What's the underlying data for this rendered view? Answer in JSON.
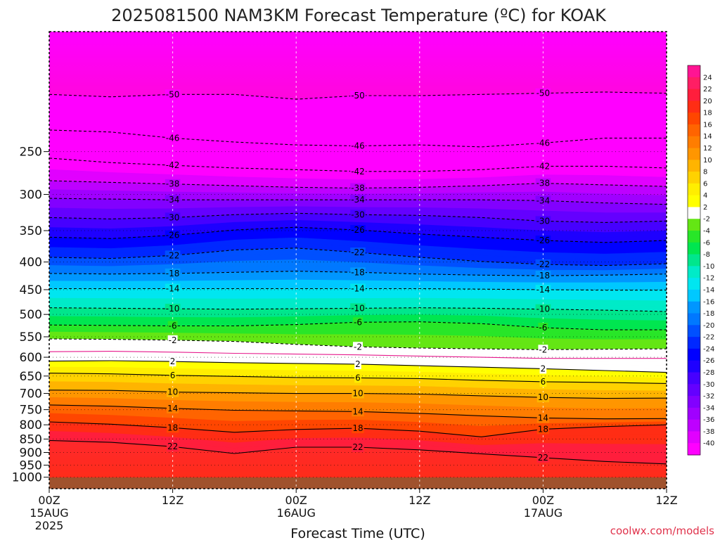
{
  "title": "2025081500 NAM3KM Forecast Temperature (ºC) for KOAK",
  "credit": "coolwx.com/models",
  "chart_data": {
    "type": "heatmap",
    "title": "2025081500 NAM3KM Forecast Temperature (ºC) for KOAK",
    "xlabel": "Forecast Time (UTC)",
    "ylabel": "",
    "x_range_hours": [
      0,
      60
    ],
    "y_range_hpa": [
      1050,
      150
    ],
    "y_scale": "log (pressure)",
    "y_ticks": [
      250,
      300,
      350,
      400,
      450,
      500,
      550,
      600,
      650,
      700,
      750,
      800,
      850,
      900,
      950,
      1000
    ],
    "x_ticks": [
      {
        "hour": 0,
        "label": "00Z",
        "date": "15AUG",
        "year": "2025"
      },
      {
        "hour": 12,
        "label": "12Z",
        "date": "",
        "year": ""
      },
      {
        "hour": 24,
        "label": "00Z",
        "date": "16AUG",
        "year": ""
      },
      {
        "hour": 36,
        "label": "12Z",
        "date": "",
        "year": ""
      },
      {
        "hour": 48,
        "label": "00Z",
        "date": "17AUG",
        "year": ""
      },
      {
        "hour": 60,
        "label": "12Z",
        "date": "",
        "year": ""
      }
    ],
    "grid": true,
    "colorbar": {
      "position": "right",
      "levels": [
        24,
        22,
        20,
        18,
        16,
        14,
        12,
        10,
        8,
        6,
        4,
        2,
        -2,
        -4,
        -6,
        -8,
        -10,
        -12,
        -14,
        -16,
        -18,
        -20,
        -22,
        -24,
        -26,
        -28,
        -30,
        -32,
        -34,
        -36,
        -38,
        -40
      ],
      "colors": [
        "#ff1493",
        "#ff1e64",
        "#ff1e3c",
        "#ff2d14",
        "#ff4600",
        "#ff6400",
        "#ff7d00",
        "#ff9600",
        "#ffb400",
        "#ffd200",
        "#ffee00",
        "#ffff00",
        "#ffffff",
        "#64e614",
        "#28e628",
        "#00e650",
        "#00e68c",
        "#00ebc8",
        "#00e6f0",
        "#00c8ff",
        "#0096ff",
        "#0078ff",
        "#0050ff",
        "#0028ff",
        "#0000ff",
        "#1e00ff",
        "#4600ff",
        "#6400ff",
        "#8200ff",
        "#a000ff",
        "#be00ff",
        "#e100ff",
        "#ff00ff"
      ]
    },
    "contours": [
      {
        "value": -50,
        "style": "dashed",
        "pressure_hpa": [
          196,
          198,
          196,
          196,
          200,
          197,
          197,
          196,
          195,
          194,
          195
        ]
      },
      {
        "value": -46,
        "style": "dashed",
        "pressure_hpa": [
          228,
          230,
          236,
          240,
          243,
          244,
          243,
          245,
          241,
          236,
          236
        ]
      },
      {
        "value": -42,
        "style": "dashed",
        "pressure_hpa": [
          257,
          262,
          265,
          268,
          270,
          272,
          272,
          270,
          266,
          266,
          268
        ]
      },
      {
        "value": -38,
        "style": "dashed",
        "pressure_hpa": [
          283,
          285,
          287,
          289,
          291,
          292,
          291,
          289,
          286,
          288,
          290
        ]
      },
      {
        "value": -34,
        "style": "dashed",
        "pressure_hpa": [
          305,
          306,
          307,
          307,
          307,
          307,
          307,
          307,
          308,
          311,
          313
        ]
      },
      {
        "value": -30,
        "style": "dashed",
        "pressure_hpa": [
          331,
          333,
          331,
          327,
          325,
          327,
          328,
          331,
          336,
          338,
          336
        ]
      },
      {
        "value": -26,
        "style": "dashed",
        "pressure_hpa": [
          360,
          362,
          357,
          349,
          345,
          349,
          355,
          360,
          365,
          368,
          365
        ]
      },
      {
        "value": -22,
        "style": "dashed",
        "pressure_hpa": [
          392,
          394,
          389,
          380,
          377,
          384,
          392,
          399,
          404,
          406,
          403
        ]
      },
      {
        "value": -18,
        "style": "dashed",
        "pressure_hpa": [
          420,
          421,
          420,
          418,
          416,
          418,
          421,
          423,
          424,
          423,
          421
        ]
      },
      {
        "value": -14,
        "style": "dashed",
        "pressure_hpa": [
          448,
          448,
          448,
          448,
          448,
          448,
          448,
          449,
          450,
          451,
          451
        ]
      },
      {
        "value": -10,
        "style": "dashed",
        "pressure_hpa": [
          486,
          487,
          488,
          489,
          488,
          487,
          486,
          487,
          489,
          491,
          494
        ]
      },
      {
        "value": -6,
        "style": "dashed",
        "pressure_hpa": [
          523,
          524,
          525,
          525,
          522,
          517,
          516,
          520,
          529,
          534,
          534
        ]
      },
      {
        "value": -2,
        "style": "dashed",
        "pressure_hpa": [
          555,
          556,
          558,
          561,
          568,
          574,
          577,
          579,
          581,
          580,
          579
        ]
      },
      {
        "value": 0,
        "style": "solid-magenta",
        "pressure_hpa": [
          586,
          585,
          587,
          590,
          592,
          594,
          597,
          600,
          603,
          603,
          603
        ]
      },
      {
        "value": 2,
        "style": "solid",
        "pressure_hpa": [
          610,
          609,
          611,
          614,
          616,
          618,
          622,
          626,
          630,
          635,
          640
        ]
      },
      {
        "value": 6,
        "style": "solid",
        "pressure_hpa": [
          642,
          644,
          648,
          651,
          654,
          655,
          657,
          662,
          666,
          668,
          671
        ]
      },
      {
        "value": 10,
        "style": "solid",
        "pressure_hpa": [
          690,
          691,
          696,
          698,
          700,
          700,
          702,
          707,
          712,
          715,
          714
        ]
      },
      {
        "value": 14,
        "style": "solid",
        "pressure_hpa": [
          735,
          739,
          746,
          752,
          754,
          756,
          762,
          770,
          777,
          780,
          779
        ]
      },
      {
        "value": 18,
        "style": "solid",
        "pressure_hpa": [
          790,
          798,
          810,
          826,
          816,
          812,
          822,
          842,
          815,
          806,
          800
        ]
      },
      {
        "value": 22,
        "style": "solid",
        "pressure_hpa": [
          855,
          862,
          878,
          904,
          880,
          880,
          890,
          905,
          920,
          935,
          945
        ]
      }
    ]
  }
}
